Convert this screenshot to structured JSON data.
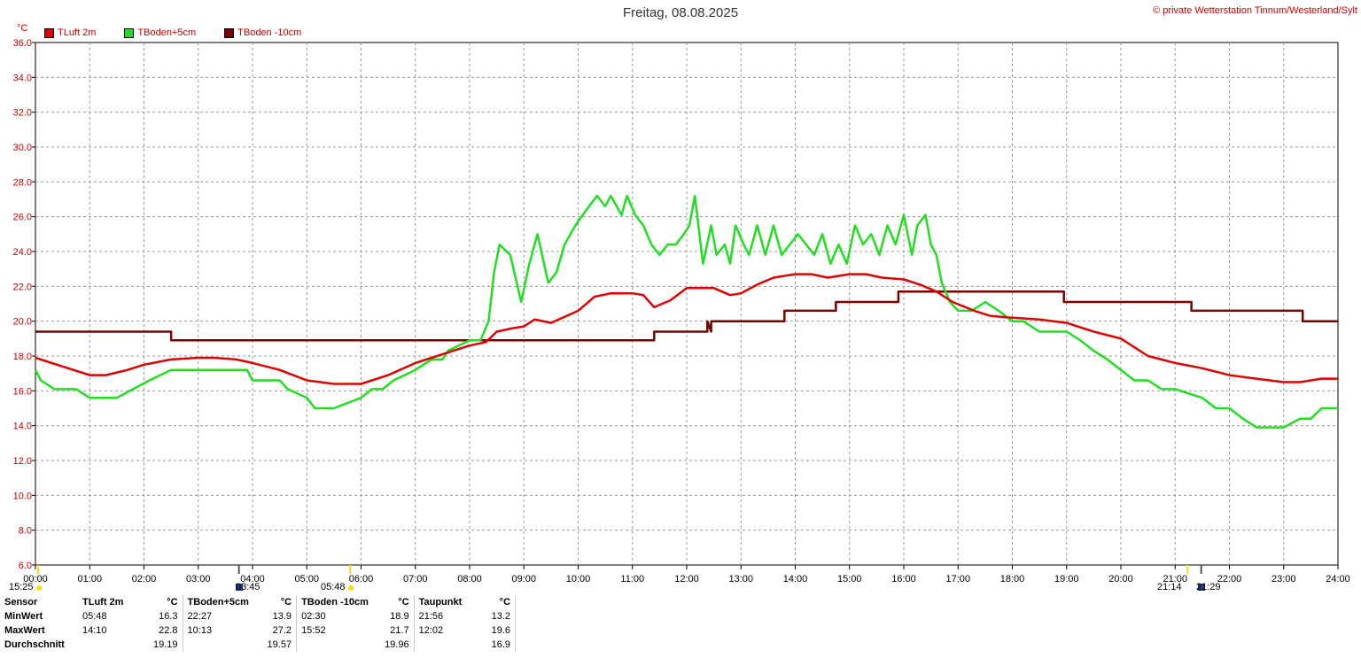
{
  "header": {
    "title": "Freitag, 08.08.2025",
    "copyright": "© private Wetterstation Tinnum/Westerland/Sylt",
    "unit": "°C"
  },
  "colors": {
    "tluft": "#dd0000",
    "tboden5": "#22dd22",
    "tboden10": "#7a0000",
    "grid": "#999999"
  },
  "chart_data": {
    "type": "line",
    "title": "Freitag, 08.08.2025",
    "ylabel": "°C",
    "xlabel": "",
    "ylim": [
      6,
      36
    ],
    "xlim": [
      "00:00",
      "24:00"
    ],
    "y_ticks": [
      "6.0",
      "8.0",
      "10.0",
      "12.0",
      "14.0",
      "16.0",
      "18.0",
      "20.0",
      "22.0",
      "24.0",
      "26.0",
      "28.0",
      "30.0",
      "32.0",
      "34.0",
      "36.0"
    ],
    "x_ticks": [
      "00:00",
      "01:00",
      "02:00",
      "03:00",
      "04:00",
      "05:00",
      "06:00",
      "07:00",
      "08:00",
      "09:00",
      "10:00",
      "11:00",
      "12:00",
      "13:00",
      "14:00",
      "15:00",
      "16:00",
      "17:00",
      "18:00",
      "19:00",
      "20:00",
      "21:00",
      "22:00",
      "23:00",
      "24:00"
    ],
    "grid": true,
    "legend_position": "top-left",
    "series": [
      {
        "name": "TLuft 2m",
        "color": "#dd0000",
        "x": [
          0,
          0.5,
          1,
          1.3,
          1.7,
          2,
          2.5,
          3,
          3.3,
          3.7,
          4,
          4.5,
          5,
          5.5,
          6,
          6.5,
          7,
          7.5,
          8,
          8.3,
          8.5,
          8.8,
          9,
          9.2,
          9.5,
          10,
          10.3,
          10.6,
          11,
          11.2,
          11.4,
          11.7,
          12,
          12.5,
          12.8,
          13,
          13.3,
          13.6,
          14,
          14.3,
          14.6,
          15,
          15.3,
          15.6,
          16,
          16.3,
          16.6,
          16.9,
          17.3,
          17.6,
          18,
          18.5,
          19,
          19.5,
          20,
          20.5,
          21,
          21.5,
          22,
          22.5,
          23,
          23.3,
          23.7,
          24
        ],
        "y": [
          17.9,
          17.4,
          16.9,
          16.9,
          17.2,
          17.5,
          17.8,
          17.9,
          17.9,
          17.8,
          17.6,
          17.2,
          16.6,
          16.4,
          16.4,
          16.9,
          17.6,
          18.1,
          18.6,
          18.8,
          19.4,
          19.6,
          19.7,
          20.1,
          19.9,
          20.6,
          21.4,
          21.6,
          21.6,
          21.5,
          20.8,
          21.2,
          21.9,
          21.9,
          21.5,
          21.6,
          22.1,
          22.5,
          22.7,
          22.7,
          22.5,
          22.7,
          22.7,
          22.5,
          22.4,
          22.1,
          21.7,
          21.1,
          20.6,
          20.3,
          20.2,
          20.1,
          19.9,
          19.4,
          19.0,
          18.0,
          17.6,
          17.3,
          16.9,
          16.7,
          16.5,
          16.5,
          16.7,
          16.7
        ]
      },
      {
        "name": "TBoden+5cm",
        "color": "#22dd22",
        "x": [
          0,
          0.1,
          0.35,
          0.75,
          1,
          1.5,
          1.8,
          2.1,
          2.5,
          3,
          3.5,
          3.9,
          4,
          4.5,
          4.65,
          5,
          5.15,
          5.25,
          5.5,
          6,
          6.2,
          6.4,
          6.6,
          7,
          7.3,
          7.5,
          7.6,
          8,
          8.2,
          8.35,
          8.45,
          8.55,
          8.75,
          8.95,
          9.1,
          9.25,
          9.45,
          9.6,
          9.75,
          9.95,
          10.2,
          10.35,
          10.5,
          10.6,
          10.8,
          10.9,
          11.05,
          11.2,
          11.35,
          11.5,
          11.65,
          11.8,
          11.95,
          12.05,
          12.15,
          12.3,
          12.45,
          12.55,
          12.7,
          12.8,
          12.9,
          13.05,
          13.15,
          13.3,
          13.45,
          13.6,
          13.75,
          13.9,
          14.05,
          14.2,
          14.35,
          14.5,
          14.65,
          14.8,
          14.95,
          15.1,
          15.25,
          15.4,
          15.55,
          15.7,
          15.85,
          16.0,
          16.15,
          16.25,
          16.4,
          16.5,
          16.6,
          16.7,
          16.85,
          17,
          17.25,
          17.5,
          17.75,
          18,
          18.2,
          18.5,
          18.75,
          19,
          19.25,
          19.5,
          19.75,
          20,
          20.25,
          20.5,
          20.75,
          21,
          21.5,
          21.75,
          22,
          22.25,
          22.5,
          23,
          23.3,
          23.5,
          23.7,
          24
        ],
        "y": [
          17.2,
          16.6,
          16.1,
          16.1,
          15.6,
          15.6,
          16.1,
          16.6,
          17.2,
          17.2,
          17.2,
          17.2,
          16.6,
          16.6,
          16.1,
          15.6,
          15.0,
          15.0,
          15.0,
          15.6,
          16.1,
          16.1,
          16.6,
          17.2,
          17.8,
          17.8,
          18.3,
          18.9,
          18.9,
          20.0,
          22.8,
          24.4,
          23.8,
          21.1,
          23.3,
          25.0,
          22.2,
          22.8,
          24.4,
          25.5,
          26.6,
          27.2,
          26.6,
          27.2,
          26.1,
          27.2,
          26.1,
          25.5,
          24.4,
          23.8,
          24.4,
          24.4,
          25.0,
          25.5,
          27.2,
          23.3,
          25.5,
          23.8,
          24.4,
          23.3,
          25.5,
          24.4,
          23.8,
          25.5,
          23.8,
          25.5,
          23.8,
          24.4,
          25.0,
          24.4,
          23.8,
          25.0,
          23.3,
          24.4,
          23.3,
          25.5,
          24.4,
          25.0,
          23.8,
          25.5,
          24.4,
          26.1,
          23.8,
          25.5,
          26.1,
          24.4,
          23.8,
          22.2,
          21.1,
          20.6,
          20.6,
          21.1,
          20.6,
          20.0,
          20.0,
          19.4,
          19.4,
          19.4,
          18.9,
          18.3,
          17.8,
          17.2,
          16.6,
          16.6,
          16.1,
          16.1,
          15.6,
          15.0,
          15.0,
          14.4,
          13.9,
          13.9,
          14.4,
          14.4,
          15.0,
          15.0
        ]
      },
      {
        "name": "TBoden -10cm",
        "color": "#7a0000",
        "x": [
          0,
          2.5,
          2.5,
          11.4,
          11.4,
          12.38,
          12.38,
          12.45,
          12.45,
          13.8,
          13.8,
          14.75,
          14.75,
          15.9,
          15.9,
          18.95,
          18.95,
          21.3,
          21.3,
          23.35,
          23.35,
          24
        ],
        "y": [
          19.4,
          19.4,
          18.9,
          18.9,
          19.4,
          19.4,
          20.0,
          19.4,
          20.0,
          20.0,
          20.6,
          20.6,
          21.1,
          21.1,
          21.7,
          21.7,
          21.1,
          21.1,
          20.6,
          20.6,
          20.0,
          20.0
        ]
      }
    ]
  },
  "sun_markers": {
    "left_top": "15:25",
    "left_icon_label": "03:45",
    "left_sunrise": "05:48",
    "right_time": "21:14",
    "right_icon_label": "21:29"
  },
  "stats": {
    "headers": [
      "Sensor",
      "TLuft 2m",
      "°C",
      "TBoden+5cm",
      "°C",
      "TBoden -10cm",
      "°C",
      "Taupunkt",
      "°C"
    ],
    "rows": [
      [
        "MinWert",
        "05:48",
        "16.3",
        "22:27",
        "13.9",
        "02:30",
        "18.9",
        "21:56",
        "13.2"
      ],
      [
        "MaxWert",
        "14:10",
        "22.8",
        "10:13",
        "27.2",
        "15:52",
        "21.7",
        "12:02",
        "19.6"
      ],
      [
        "Durchschnitt",
        "",
        "19.19",
        "",
        "19.57",
        "",
        "19.96",
        "",
        "16.9"
      ]
    ]
  }
}
